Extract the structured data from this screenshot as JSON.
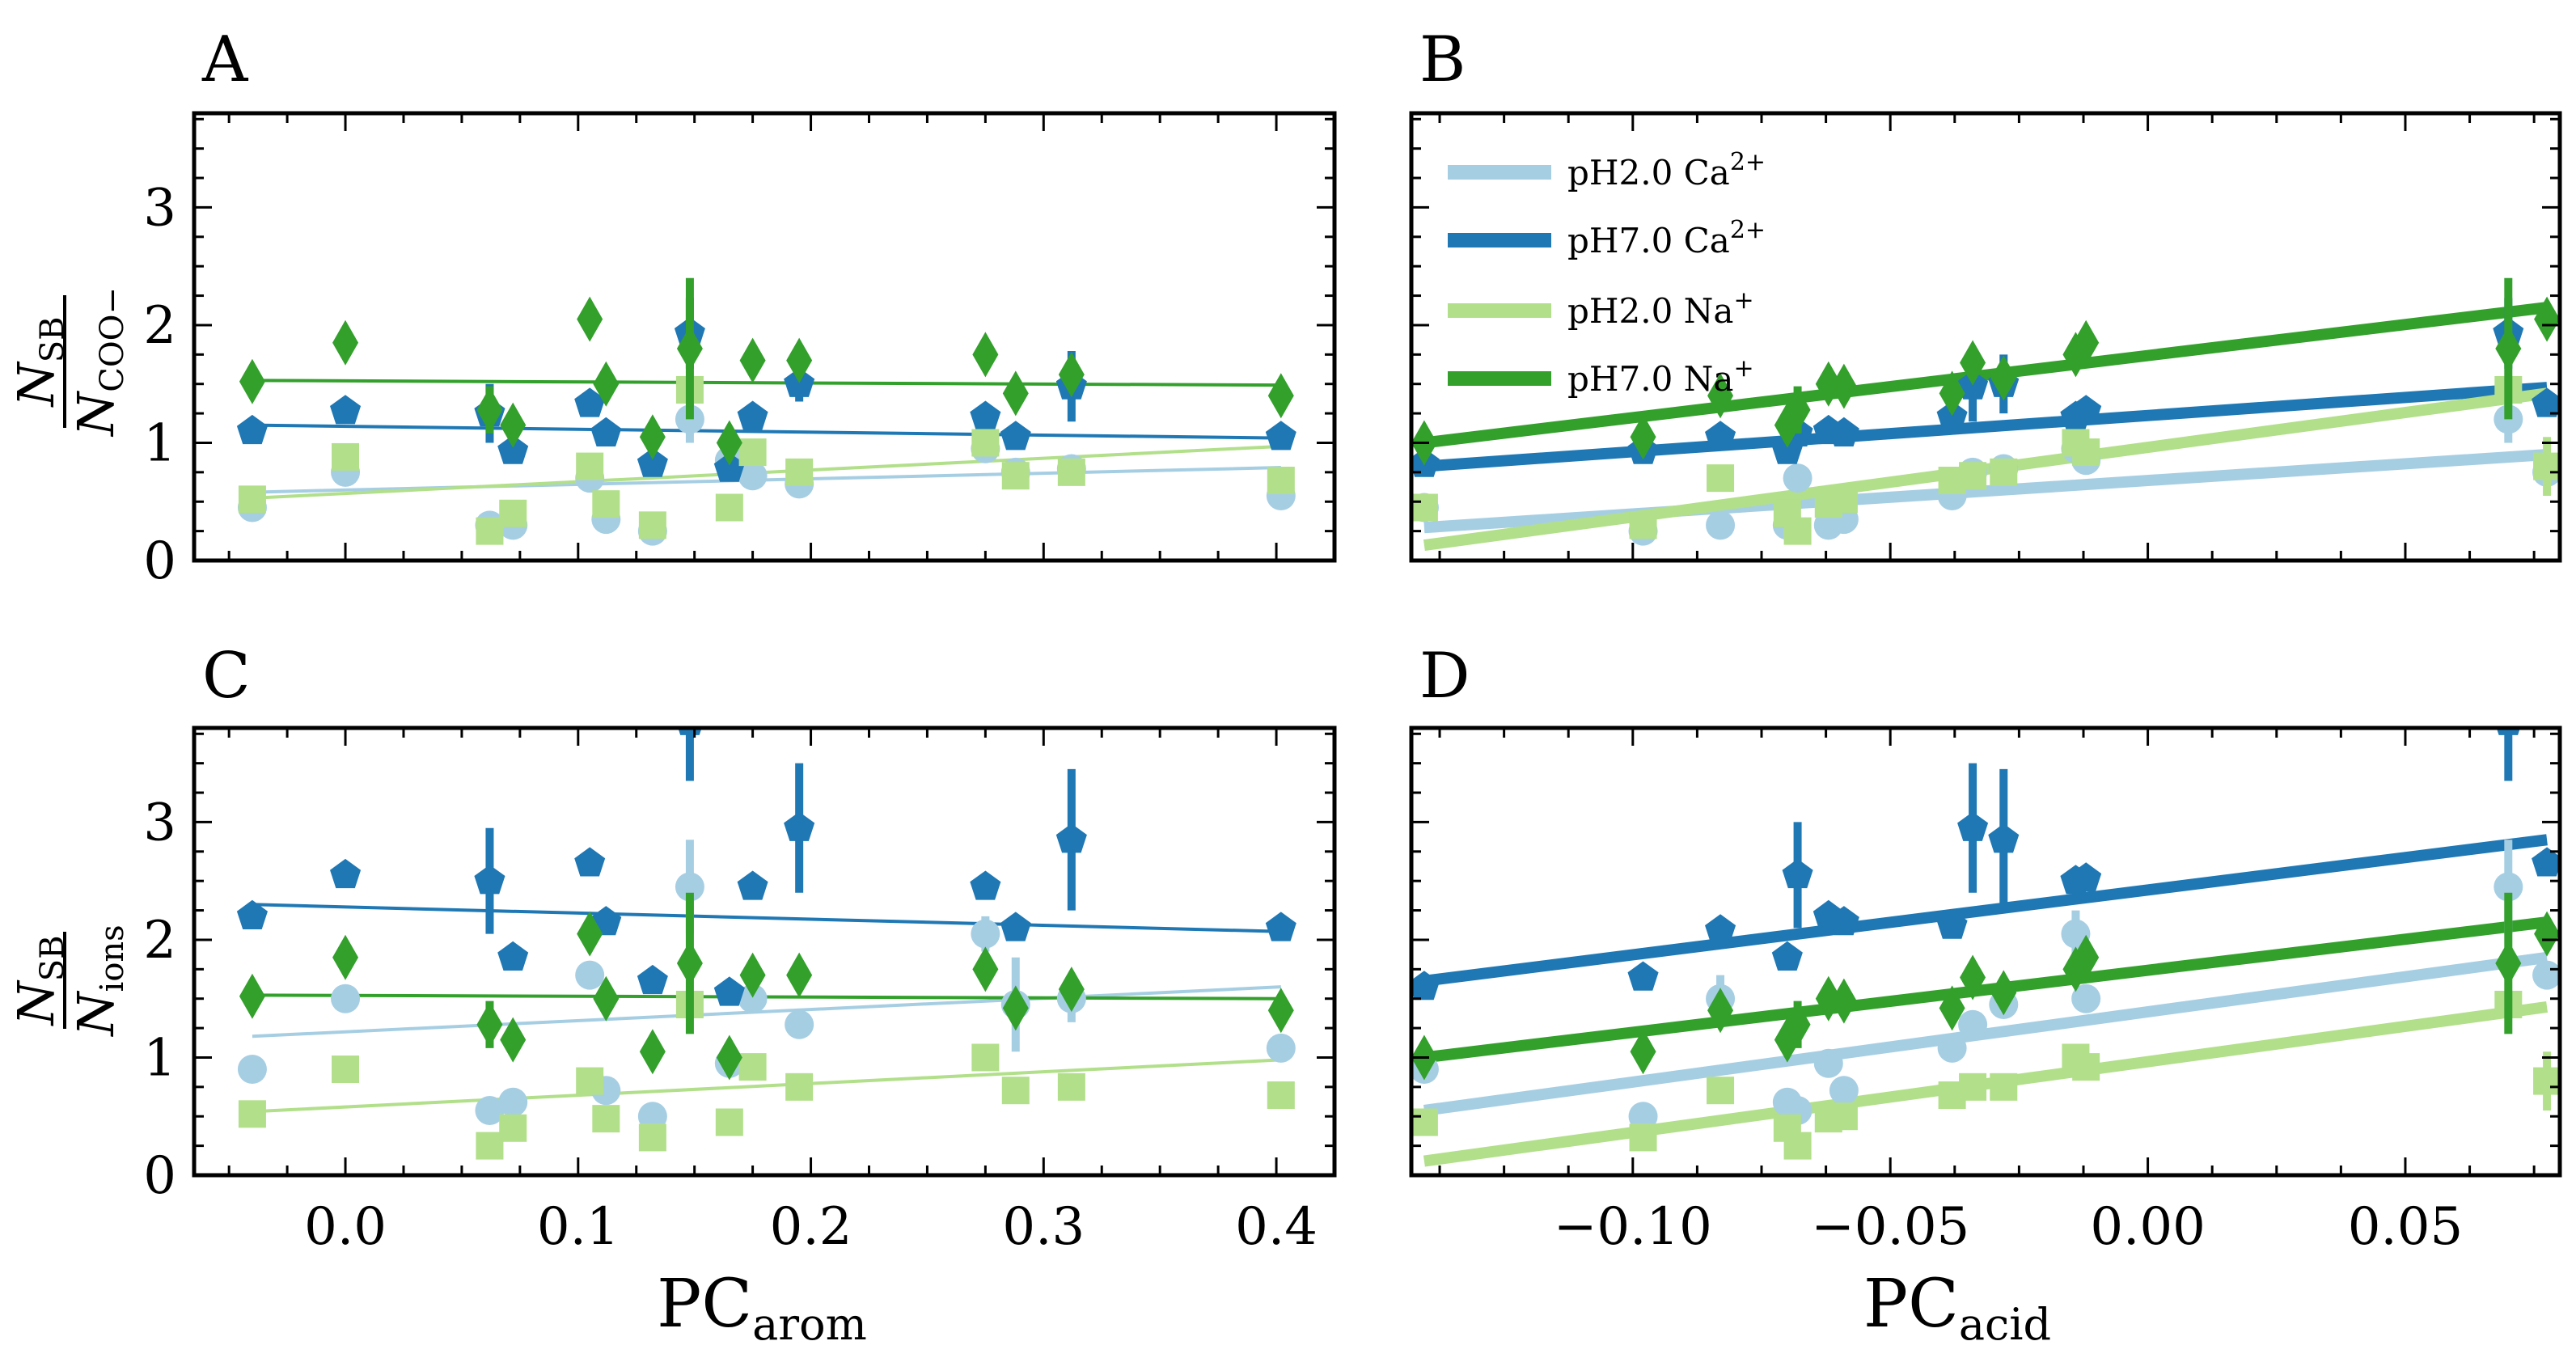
{
  "figure": {
    "colors": {
      "pH2_Ca": "#a6cee3",
      "pH7_Ca": "#1f78b4",
      "pH2_Na": "#b2df8a",
      "pH7_Na": "#33a02c"
    }
  },
  "labels": {
    "ylabel_top_num": "N",
    "ylabel_top_num_sub": "SB",
    "ylabel_top_den": "N",
    "ylabel_top_den_sub": "COO−",
    "ylabel_bottom_num": "N",
    "ylabel_bottom_num_sub": "SB",
    "ylabel_bottom_den": "N",
    "ylabel_bottom_den_sub": "ions",
    "xlabel_left": "PC",
    "xlabel_left_sub": "arom",
    "xlabel_right": "PC",
    "xlabel_right_sub": "acid"
  },
  "legend": [
    {
      "key": "pH2_Ca",
      "text": "pH2.0 Ca",
      "sup": "2+"
    },
    {
      "key": "pH7_Ca",
      "text": "pH7.0 Ca",
      "sup": "2+"
    },
    {
      "key": "pH2_Na",
      "text": "pH2.0 Na",
      "sup": "+"
    },
    {
      "key": "pH7_Na",
      "text": "pH7.0 Na",
      "sup": "+"
    }
  ],
  "chart_data": [
    {
      "id": "A",
      "type": "scatter",
      "title": "A",
      "xlim": [
        -0.065,
        0.425
      ],
      "ylim": [
        0,
        3.8
      ],
      "xticks": [],
      "yticks": [
        0,
        1,
        2,
        3
      ],
      "series": [
        {
          "key": "pH2_Ca",
          "marker": "circle",
          "linewidth": 4,
          "x": [
            -0.04,
            0.0,
            0.062,
            0.072,
            0.105,
            0.112,
            0.132,
            0.148,
            0.165,
            0.175,
            0.195,
            0.275,
            0.288,
            0.312,
            0.402
          ],
          "y": [
            0.45,
            0.75,
            0.3,
            0.3,
            0.7,
            0.35,
            0.25,
            1.2,
            0.85,
            0.72,
            0.65,
            0.95,
            0.75,
            0.78,
            0.55
          ],
          "err": [
            0,
            0,
            0,
            0,
            0,
            0,
            0,
            0.2,
            0,
            0,
            0,
            0,
            0,
            0,
            0
          ],
          "fit": [
            0.58,
            0.79
          ]
        },
        {
          "key": "pH7_Ca",
          "marker": "pentagon",
          "linewidth": 4,
          "x": [
            -0.04,
            0.0,
            0.062,
            0.072,
            0.105,
            0.112,
            0.132,
            0.148,
            0.165,
            0.175,
            0.195,
            0.275,
            0.288,
            0.312,
            0.402
          ],
          "y": [
            1.1,
            1.27,
            1.25,
            0.93,
            1.33,
            1.08,
            0.82,
            1.93,
            0.78,
            1.22,
            1.5,
            1.22,
            1.05,
            1.48,
            1.05
          ],
          "err": [
            0,
            0,
            0.25,
            0,
            0,
            0,
            0,
            0.3,
            0,
            0,
            0.15,
            0,
            0,
            0.3,
            0
          ],
          "fit": [
            1.15,
            1.04
          ]
        },
        {
          "key": "pH2_Na",
          "marker": "square",
          "linewidth": 4,
          "x": [
            -0.04,
            0.0,
            0.062,
            0.072,
            0.105,
            0.112,
            0.132,
            0.148,
            0.165,
            0.175,
            0.195,
            0.275,
            0.288,
            0.312,
            0.402
          ],
          "y": [
            0.52,
            0.88,
            0.25,
            0.4,
            0.8,
            0.48,
            0.3,
            1.45,
            0.45,
            0.92,
            0.75,
            1.0,
            0.72,
            0.75,
            0.68
          ],
          "err": [
            0,
            0,
            0,
            0,
            0,
            0,
            0,
            0,
            0,
            0,
            0,
            0,
            0,
            0,
            0
          ],
          "fit": [
            0.53,
            0.97
          ]
        },
        {
          "key": "pH7_Na",
          "marker": "diamond",
          "linewidth": 4,
          "x": [
            -0.04,
            0.0,
            0.062,
            0.072,
            0.105,
            0.112,
            0.132,
            0.148,
            0.165,
            0.175,
            0.195,
            0.275,
            0.288,
            0.312,
            0.402
          ],
          "y": [
            1.52,
            1.85,
            1.28,
            1.15,
            2.05,
            1.5,
            1.05,
            1.8,
            1.0,
            1.7,
            1.7,
            1.75,
            1.42,
            1.58,
            1.4
          ],
          "err": [
            0,
            0,
            0.2,
            0,
            0,
            0,
            0,
            0.6,
            0,
            0,
            0,
            0,
            0,
            0,
            0
          ],
          "fit": [
            1.53,
            1.49
          ]
        }
      ]
    },
    {
      "id": "B",
      "type": "scatter",
      "title": "B",
      "xlim": [
        -0.143,
        0.08
      ],
      "ylim": [
        0,
        3.8
      ],
      "xticks": [],
      "yticks": [],
      "legend": "top-left",
      "series": [
        {
          "key": "pH2_Ca",
          "marker": "circle",
          "linewidth": 14,
          "x": [
            -0.1405,
            -0.098,
            -0.083,
            -0.07,
            -0.068,
            -0.062,
            -0.059,
            -0.038,
            -0.034,
            -0.028,
            -0.014,
            -0.012,
            0.07,
            0.0775
          ],
          "y": [
            0.45,
            0.25,
            0.3,
            0.3,
            0.7,
            0.3,
            0.35,
            0.55,
            0.75,
            0.78,
            0.95,
            0.85,
            1.2,
            0.75
          ],
          "err": [
            0,
            0,
            0,
            0,
            0,
            0,
            0,
            0,
            0,
            0,
            0,
            0,
            0.2,
            0
          ],
          "fit": [
            0.28,
            0.9
          ]
        },
        {
          "key": "pH7_Ca",
          "marker": "pentagon",
          "linewidth": 14,
          "x": [
            -0.1405,
            -0.098,
            -0.083,
            -0.07,
            -0.068,
            -0.062,
            -0.059,
            -0.038,
            -0.034,
            -0.028,
            -0.014,
            -0.012,
            0.07,
            0.0775
          ],
          "y": [
            0.82,
            0.93,
            1.05,
            0.93,
            1.08,
            1.1,
            1.08,
            1.22,
            1.48,
            1.5,
            1.22,
            1.27,
            1.93,
            1.33
          ],
          "err": [
            0,
            0,
            0,
            0,
            0,
            0,
            0,
            0,
            0.3,
            0.25,
            0,
            0,
            0.3,
            0
          ],
          "fit": [
            0.8,
            1.47
          ]
        },
        {
          "key": "pH2_Na",
          "marker": "square",
          "linewidth": 14,
          "x": [
            -0.1405,
            -0.098,
            -0.083,
            -0.07,
            -0.068,
            -0.062,
            -0.059,
            -0.038,
            -0.034,
            -0.028,
            -0.014,
            -0.012,
            0.07,
            0.0775
          ],
          "y": [
            0.45,
            0.3,
            0.7,
            0.4,
            0.25,
            0.48,
            0.52,
            0.68,
            0.72,
            0.75,
            1.0,
            0.92,
            1.45,
            0.8
          ],
          "err": [
            0,
            0,
            0,
            0,
            0,
            0,
            0,
            0,
            0,
            0,
            0,
            0,
            0,
            0.25
          ],
          "fit": [
            0.13,
            1.42
          ]
        },
        {
          "key": "pH7_Na",
          "marker": "diamond",
          "linewidth": 14,
          "x": [
            -0.1405,
            -0.098,
            -0.083,
            -0.07,
            -0.068,
            -0.062,
            -0.059,
            -0.038,
            -0.034,
            -0.028,
            -0.014,
            -0.012,
            0.07,
            0.0775
          ],
          "y": [
            1.0,
            1.05,
            1.4,
            1.15,
            1.28,
            1.5,
            1.48,
            1.42,
            1.68,
            1.55,
            1.75,
            1.85,
            1.8,
            2.05
          ],
          "err": [
            0,
            0,
            0,
            0,
            0.2,
            0,
            0,
            0,
            0,
            0,
            0,
            0,
            0.6,
            0
          ],
          "fit": [
            1.0,
            2.15
          ]
        }
      ]
    },
    {
      "id": "C",
      "type": "scatter",
      "title": "C",
      "xlim": [
        -0.065,
        0.425
      ],
      "ylim": [
        0,
        3.8
      ],
      "xticks": [
        0.0,
        0.1,
        0.2,
        0.3,
        0.4
      ],
      "xticklabels": [
        "0.0",
        "0.1",
        "0.2",
        "0.3",
        "0.4"
      ],
      "yticks": [
        0,
        1,
        2,
        3
      ],
      "series": [
        {
          "key": "pH2_Ca",
          "marker": "circle",
          "linewidth": 4,
          "x": [
            -0.04,
            0.0,
            0.062,
            0.072,
            0.105,
            0.112,
            0.132,
            0.148,
            0.165,
            0.175,
            0.195,
            0.275,
            0.288,
            0.312,
            0.402
          ],
          "y": [
            0.9,
            1.5,
            0.55,
            0.62,
            1.7,
            0.72,
            0.5,
            2.45,
            0.95,
            1.5,
            1.28,
            2.05,
            1.45,
            1.5,
            1.08
          ],
          "err": [
            0,
            0,
            0,
            0,
            0,
            0,
            0,
            0.4,
            0,
            0,
            0,
            0.15,
            0.4,
            0.2,
            0
          ],
          "fit": [
            1.18,
            1.6
          ]
        },
        {
          "key": "pH7_Ca",
          "marker": "pentagon",
          "linewidth": 4,
          "x": [
            -0.04,
            0.0,
            0.062,
            0.072,
            0.105,
            0.112,
            0.132,
            0.148,
            0.165,
            0.175,
            0.195,
            0.275,
            0.288,
            0.312,
            0.402
          ],
          "y": [
            2.2,
            2.55,
            2.5,
            1.85,
            2.65,
            2.15,
            1.65,
            3.85,
            1.55,
            2.45,
            2.95,
            2.45,
            2.1,
            2.85,
            2.1
          ],
          "err": [
            0,
            0,
            0.45,
            0,
            0,
            0,
            0,
            0.5,
            0,
            0,
            0.55,
            0,
            0,
            0.6,
            0
          ],
          "fit": [
            2.3,
            2.07
          ]
        },
        {
          "key": "pH2_Na",
          "marker": "square",
          "linewidth": 4,
          "x": [
            -0.04,
            0.0,
            0.062,
            0.072,
            0.105,
            0.112,
            0.132,
            0.148,
            0.165,
            0.175,
            0.195,
            0.275,
            0.288,
            0.312,
            0.402
          ],
          "y": [
            0.52,
            0.9,
            0.25,
            0.4,
            0.8,
            0.48,
            0.32,
            1.45,
            0.45,
            0.92,
            0.75,
            1.0,
            0.72,
            0.75,
            0.68
          ],
          "err": [
            0,
            0,
            0,
            0,
            0,
            0,
            0,
            0,
            0,
            0,
            0,
            0,
            0,
            0,
            0
          ],
          "fit": [
            0.54,
            0.98
          ]
        },
        {
          "key": "pH7_Na",
          "marker": "diamond",
          "linewidth": 4,
          "x": [
            -0.04,
            0.0,
            0.062,
            0.072,
            0.105,
            0.112,
            0.132,
            0.148,
            0.165,
            0.175,
            0.195,
            0.275,
            0.288,
            0.312,
            0.402
          ],
          "y": [
            1.52,
            1.85,
            1.28,
            1.15,
            2.05,
            1.5,
            1.05,
            1.8,
            1.0,
            1.7,
            1.7,
            1.75,
            1.42,
            1.58,
            1.4
          ],
          "err": [
            0,
            0,
            0.2,
            0,
            0,
            0,
            0,
            0.6,
            0,
            0,
            0,
            0,
            0,
            0,
            0
          ],
          "fit": [
            1.53,
            1.5
          ]
        }
      ]
    },
    {
      "id": "D",
      "type": "scatter",
      "title": "D",
      "xlim": [
        -0.143,
        0.08
      ],
      "ylim": [
        0,
        3.8
      ],
      "xticks": [
        -0.1,
        -0.05,
        0.0,
        0.05
      ],
      "xticklabels": [
        "−0.10",
        "−0.05",
        "0.00",
        "0.05"
      ],
      "yticks": [],
      "series": [
        {
          "key": "pH2_Ca",
          "marker": "circle",
          "linewidth": 14,
          "x": [
            -0.1405,
            -0.098,
            -0.083,
            -0.07,
            -0.068,
            -0.062,
            -0.059,
            -0.038,
            -0.034,
            -0.028,
            -0.014,
            -0.012,
            0.07,
            0.0775
          ],
          "y": [
            0.9,
            0.5,
            1.5,
            0.62,
            0.55,
            0.95,
            0.72,
            1.08,
            1.28,
            1.45,
            2.05,
            1.5,
            2.45,
            1.7
          ],
          "err": [
            0,
            0,
            0.2,
            0,
            0,
            0,
            0,
            0,
            0,
            0,
            0.2,
            0,
            0.4,
            0
          ],
          "fit": [
            0.55,
            1.85
          ]
        },
        {
          "key": "pH7_Ca",
          "marker": "pentagon",
          "linewidth": 14,
          "x": [
            -0.1405,
            -0.098,
            -0.083,
            -0.07,
            -0.068,
            -0.062,
            -0.059,
            -0.038,
            -0.034,
            -0.028,
            -0.014,
            -0.012,
            0.07,
            0.0775
          ],
          "y": [
            1.6,
            1.68,
            2.08,
            1.85,
            2.55,
            2.2,
            2.15,
            2.12,
            2.95,
            2.85,
            2.5,
            2.52,
            3.85,
            2.65
          ],
          "err": [
            0,
            0,
            0,
            0,
            0.45,
            0,
            0,
            0,
            0.55,
            0.6,
            0,
            0,
            0.5,
            0
          ],
          "fit": [
            1.65,
            2.85
          ]
        },
        {
          "key": "pH2_Na",
          "marker": "square",
          "linewidth": 14,
          "x": [
            -0.1405,
            -0.098,
            -0.083,
            -0.07,
            -0.068,
            -0.062,
            -0.059,
            -0.038,
            -0.034,
            -0.028,
            -0.014,
            -0.012,
            0.07,
            0.0775
          ],
          "y": [
            0.45,
            0.32,
            0.72,
            0.4,
            0.25,
            0.48,
            0.5,
            0.68,
            0.75,
            0.75,
            1.0,
            0.92,
            1.45,
            0.8
          ],
          "err": [
            0,
            0,
            0,
            0,
            0,
            0,
            0,
            0,
            0,
            0,
            0,
            0,
            0,
            0.25
          ],
          "fit": [
            0.12,
            1.43
          ]
        },
        {
          "key": "pH7_Na",
          "marker": "diamond",
          "linewidth": 14,
          "x": [
            -0.1405,
            -0.098,
            -0.083,
            -0.07,
            -0.068,
            -0.062,
            -0.059,
            -0.038,
            -0.034,
            -0.028,
            -0.014,
            -0.012,
            0.07,
            0.0775
          ],
          "y": [
            1.0,
            1.05,
            1.4,
            1.15,
            1.28,
            1.5,
            1.48,
            1.42,
            1.68,
            1.55,
            1.75,
            1.85,
            1.8,
            2.05
          ],
          "err": [
            0,
            0,
            0,
            0,
            0.2,
            0,
            0,
            0,
            0,
            0,
            0,
            0,
            0.6,
            0
          ],
          "fit": [
            1.0,
            2.15
          ]
        }
      ]
    }
  ]
}
